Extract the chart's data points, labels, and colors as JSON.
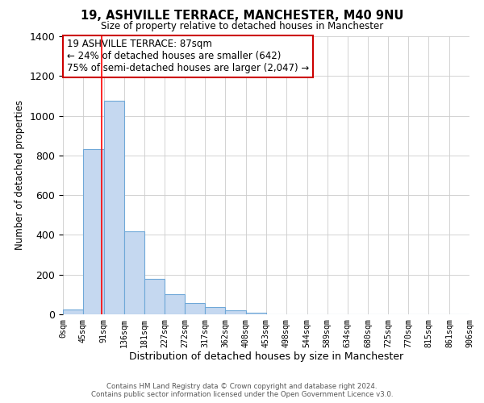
{
  "title": "19, ASHVILLE TERRACE, MANCHESTER, M40 9NU",
  "subtitle": "Size of property relative to detached houses in Manchester",
  "xlabel": "Distribution of detached houses by size in Manchester",
  "ylabel": "Number of detached properties",
  "footnote1": "Contains HM Land Registry data © Crown copyright and database right 2024.",
  "footnote2": "Contains public sector information licensed under the Open Government Licence v3.0.",
  "bin_labels": [
    "0sqm",
    "45sqm",
    "91sqm",
    "136sqm",
    "181sqm",
    "227sqm",
    "272sqm",
    "317sqm",
    "362sqm",
    "408sqm",
    "453sqm",
    "498sqm",
    "544sqm",
    "589sqm",
    "634sqm",
    "680sqm",
    "725sqm",
    "770sqm",
    "815sqm",
    "861sqm",
    "906sqm"
  ],
  "bin_edges": [
    0,
    45,
    91,
    136,
    181,
    227,
    272,
    317,
    362,
    408,
    453,
    498,
    544,
    589,
    634,
    680,
    725,
    770,
    815,
    861,
    906
  ],
  "bar_heights": [
    25,
    830,
    1075,
    420,
    180,
    100,
    55,
    38,
    22,
    8,
    2,
    0,
    0,
    0,
    0,
    0,
    0,
    0,
    0,
    0
  ],
  "bar_color": "#c5d8f0",
  "bar_edge_color": "#6fa8d8",
  "grid_color": "#cccccc",
  "red_line_x": 87,
  "annotation_line1": "19 ASHVILLE TERRACE: 87sqm",
  "annotation_line2": "← 24% of detached houses are smaller (642)",
  "annotation_line3": "75% of semi-detached houses are larger (2,047) →",
  "annotation_box_color": "#ffffff",
  "annotation_box_edge_color": "#cc0000",
  "ylim": [
    0,
    1400
  ],
  "xlim": [
    0,
    906
  ],
  "yticks": [
    0,
    200,
    400,
    600,
    800,
    1000,
    1200,
    1400
  ]
}
